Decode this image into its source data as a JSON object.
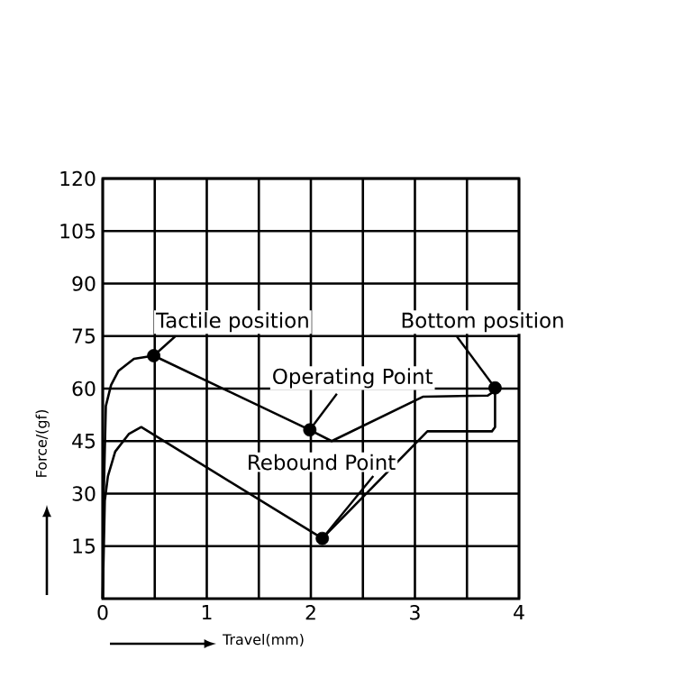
{
  "chart_data": {
    "type": "line",
    "xlabel": "Travel(mm)",
    "ylabel": "Force/(gf)",
    "xlim": [
      0,
      4
    ],
    "ylim": [
      0,
      120
    ],
    "xticks": [
      0,
      1,
      2,
      3,
      4
    ],
    "yticks": [
      15,
      30,
      45,
      60,
      75,
      90,
      105,
      120
    ],
    "grid": true,
    "line_style": "solid",
    "series": [
      {
        "color": "#000000",
        "x": [
          0,
          0.01,
          0.03,
          0.08,
          0.15,
          0.3,
          0.49,
          1.99,
          2.2,
          3.08,
          3.7,
          3.75,
          3.77
        ],
        "values": [
          0,
          30,
          55,
          61,
          65,
          68.5,
          69.4,
          48.2,
          45,
          57.7,
          58,
          59,
          60.2
        ]
      },
      {
        "color": "#000000",
        "x": [
          3.77,
          3.77,
          3.74,
          3.12,
          2.11,
          0.37,
          0.25,
          0.12,
          0.05,
          0.02,
          0
        ],
        "values": [
          60.2,
          49,
          47.8,
          47.8,
          17.2,
          49,
          47,
          42,
          35,
          28,
          0
        ]
      },
      {
        "type": "scatter",
        "color": "#000000",
        "marker": "circle",
        "x": [
          0.49,
          1.99,
          2.11,
          3.77
        ],
        "values": [
          69.4,
          48.2,
          17.2,
          60.2
        ]
      }
    ],
    "annotations": [
      {
        "text": "Tactile position",
        "x": 0.49,
        "y": 69.4
      },
      {
        "text": "Operating Point",
        "x": 1.99,
        "y": 48.2
      },
      {
        "text": "Rebound Point",
        "x": 2.11,
        "y": 17.2
      },
      {
        "text": "Bottom position",
        "x": 3.77,
        "y": 60.2
      }
    ]
  }
}
